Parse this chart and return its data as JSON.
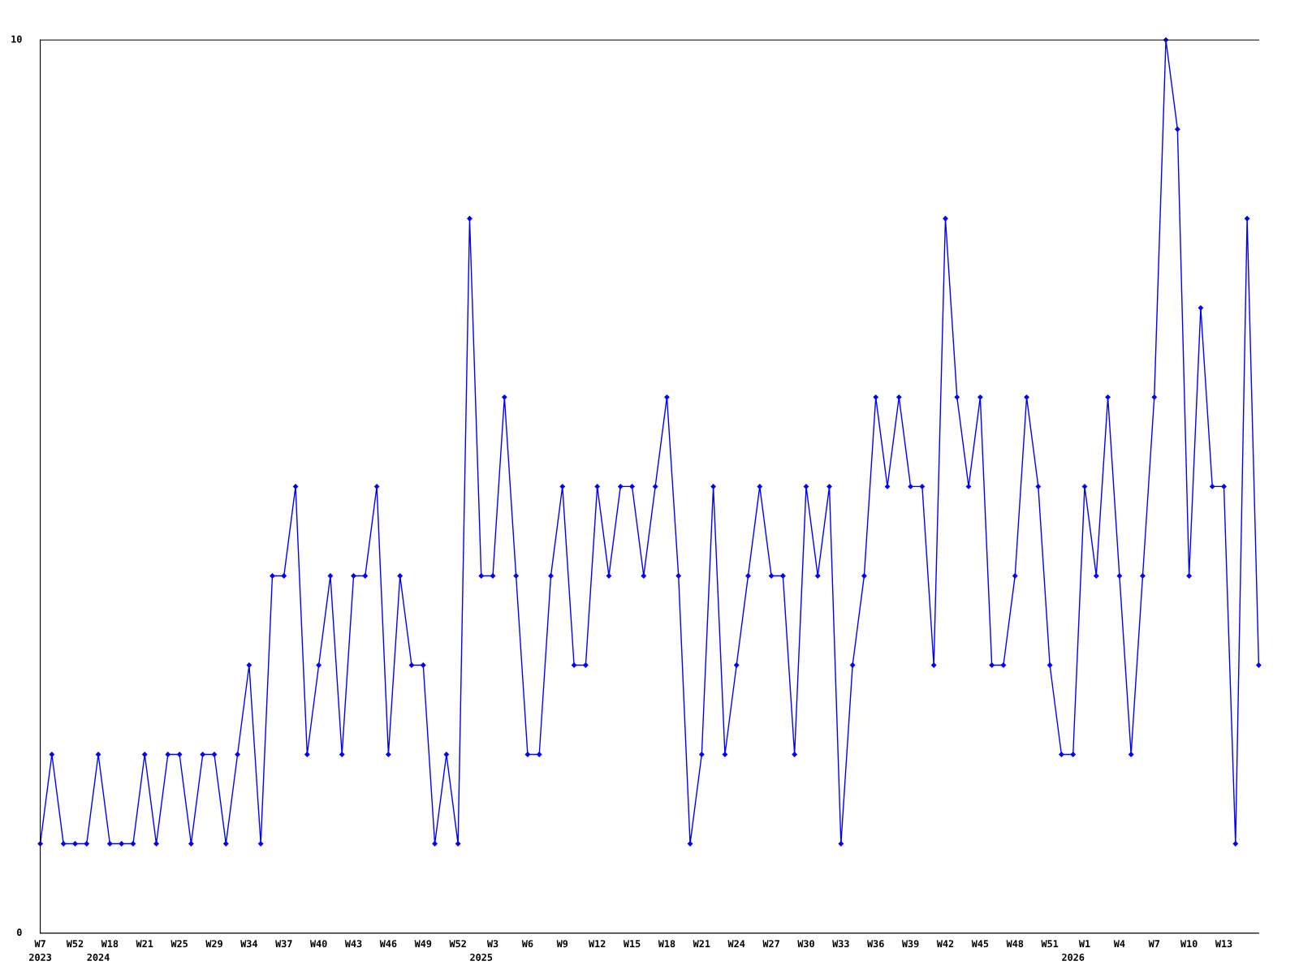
{
  "chart_data": {
    "type": "line",
    "categories": [
      "W7\n2023",
      null,
      null,
      "W52",
      null,
      "\n2024",
      "W18",
      null,
      null,
      "W21",
      null,
      null,
      "W25",
      null,
      null,
      "W29",
      null,
      null,
      "W34",
      null,
      null,
      "W37",
      null,
      null,
      "W40",
      null,
      null,
      "W43",
      null,
      null,
      "W46",
      null,
      null,
      "W49",
      null,
      null,
      "W52",
      null,
      "\n2025",
      "W3",
      null,
      null,
      "W6",
      null,
      null,
      "W9",
      null,
      null,
      "W12",
      null,
      null,
      "W15",
      null,
      null,
      "W18",
      null,
      null,
      "W21",
      null,
      null,
      "W24",
      null,
      null,
      "W27",
      null,
      null,
      "W30",
      null,
      null,
      "W33",
      null,
      null,
      "W36",
      null,
      null,
      "W39",
      null,
      null,
      "W42",
      null,
      null,
      "W45",
      null,
      null,
      "W48",
      null,
      null,
      "W51",
      null,
      "\n2026",
      "W1",
      null,
      null,
      "W4",
      null,
      null,
      "W7",
      null,
      null,
      "W10",
      null,
      null,
      "W13",
      null,
      null,
      null
    ],
    "series": [
      {
        "color": "#0000ff",
        "values": [
          1,
          2,
          1,
          1,
          1,
          2,
          1,
          1,
          1,
          2,
          1,
          2,
          2,
          1,
          2,
          2,
          1,
          2,
          3,
          1,
          4,
          4,
          5,
          2,
          3,
          4,
          2,
          4,
          4,
          5,
          2,
          4,
          3,
          3,
          1,
          2,
          1,
          8,
          4,
          4,
          6,
          4,
          2,
          2,
          4,
          5,
          3,
          3,
          5,
          4,
          5,
          5,
          4,
          5,
          6,
          4,
          1,
          2,
          5,
          2,
          3,
          4,
          5,
          4,
          4,
          2,
          5,
          4,
          5,
          1,
          3,
          4,
          6,
          5,
          6,
          5,
          5,
          3,
          8,
          6,
          5,
          6,
          3,
          3,
          4,
          6,
          5,
          3,
          2,
          2,
          5,
          4,
          6,
          4,
          2,
          4,
          6,
          10,
          9,
          4,
          7,
          5,
          5,
          1,
          8,
          3
        ]
      }
    ],
    "ylim": [
      0,
      10
    ],
    "yticks": [
      0,
      10
    ],
    "grid": false,
    "marker": "diamond",
    "line_style": "solid"
  }
}
